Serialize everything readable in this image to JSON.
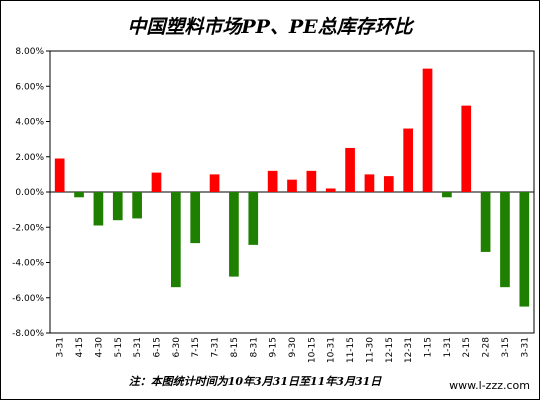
{
  "chart_data": {
    "type": "bar",
    "title": "中国塑料市场PP、PE总库存环比",
    "note": "注：本图统计时间为10年3月31日至11年3月31日",
    "watermark": "www.l-zzz.com",
    "categories": [
      "3-31",
      "4-15",
      "4-30",
      "5-15",
      "5-31",
      "6-15",
      "6-30",
      "7-15",
      "7-31",
      "8-15",
      "8-31",
      "9-15",
      "9-30",
      "10-15",
      "10-31",
      "11-15",
      "11-30",
      "12-15",
      "12-31",
      "1-15",
      "1-31",
      "2-15",
      "2-28",
      "3-15",
      "3-31"
    ],
    "values": [
      1.9,
      -0.3,
      -1.9,
      -1.6,
      -1.5,
      1.1,
      -5.4,
      -2.9,
      1.0,
      -4.8,
      -3.0,
      1.2,
      0.7,
      1.2,
      0.2,
      2.5,
      1.0,
      0.9,
      3.6,
      7.0,
      -0.3,
      4.9,
      -3.4,
      -5.4,
      -6.5
    ],
    "positive_color": "#ff0000",
    "negative_color": "#1f7f00",
    "ylim": [
      -8,
      8
    ],
    "yticks": [
      {
        "value": 8,
        "label": "8.00%"
      },
      {
        "value": 6,
        "label": "6.00%"
      },
      {
        "value": 4,
        "label": "4.00%"
      },
      {
        "value": 2,
        "label": "2.00%"
      },
      {
        "value": 0,
        "label": "0.00%"
      },
      {
        "value": -2,
        "label": "-2.00%"
      },
      {
        "value": -4,
        "label": "-4.00%"
      },
      {
        "value": -6,
        "label": "-6.00%"
      },
      {
        "value": -8,
        "label": "-8.00%"
      }
    ]
  }
}
